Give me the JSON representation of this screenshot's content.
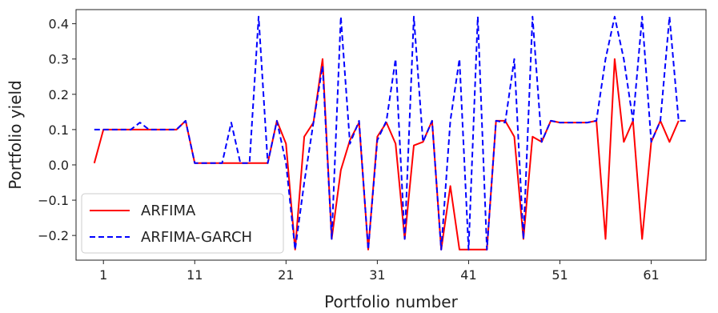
{
  "chart_data": {
    "type": "line",
    "xlabel": "Portfolio number",
    "ylabel": "Portfolio yield",
    "xlim": [
      -2,
      67
    ],
    "ylim": [
      -0.27,
      0.44
    ],
    "xticks": [
      1,
      11,
      21,
      31,
      41,
      51,
      61
    ],
    "yticks": [
      -0.2,
      -0.1,
      0.0,
      0.1,
      0.2,
      0.3,
      0.4
    ],
    "ytick_labels": [
      "−0.2",
      "−0.1",
      "0.0",
      "0.1",
      "0.2",
      "0.3",
      "0.4"
    ],
    "legend": "lower-left",
    "grid": false,
    "series": [
      {
        "name": "ARFIMA",
        "color": "#ff0000",
        "style": "solid",
        "x": [
          0,
          1,
          2,
          3,
          4,
          5,
          6,
          7,
          8,
          9,
          10,
          11,
          12,
          13,
          14,
          15,
          16,
          17,
          18,
          19,
          20,
          21,
          22,
          23,
          24,
          25,
          26,
          27,
          28,
          29,
          30,
          31,
          32,
          33,
          34,
          35,
          36,
          37,
          38,
          39,
          40,
          41,
          42,
          43,
          44,
          45,
          46,
          47,
          48,
          49,
          50,
          51,
          52,
          53,
          54,
          55,
          56,
          57,
          58,
          59,
          60,
          61,
          62,
          63,
          64
        ],
        "y": [
          0.005,
          0.1,
          0.1,
          0.1,
          0.1,
          0.1,
          0.1,
          0.1,
          0.1,
          0.1,
          0.125,
          0.005,
          0.005,
          0.005,
          0.005,
          0.005,
          0.005,
          0.005,
          0.005,
          0.005,
          0.125,
          0.06,
          -0.24,
          0.08,
          0.12,
          0.3,
          -0.21,
          -0.015,
          0.07,
          0.12,
          -0.24,
          0.08,
          0.12,
          0.06,
          -0.21,
          0.055,
          0.065,
          0.125,
          -0.24,
          -0.06,
          -0.24,
          -0.24,
          -0.24,
          -0.24,
          0.125,
          0.125,
          0.08,
          -0.21,
          0.08,
          0.065,
          0.125,
          0.12,
          0.12,
          0.12,
          0.12,
          0.125,
          -0.21,
          0.3,
          0.065,
          0.125,
          -0.21,
          0.065,
          0.125,
          0.065,
          0.125
        ]
      },
      {
        "name": "ARFIMA-GARCH",
        "color": "#0000ff",
        "style": "dashed",
        "x": [
          0,
          1,
          2,
          3,
          4,
          5,
          6,
          7,
          8,
          9,
          10,
          11,
          12,
          13,
          14,
          15,
          16,
          17,
          18,
          19,
          20,
          21,
          22,
          23,
          24,
          25,
          26,
          27,
          28,
          29,
          30,
          31,
          32,
          33,
          34,
          35,
          36,
          37,
          38,
          39,
          40,
          41,
          42,
          43,
          44,
          45,
          46,
          47,
          48,
          49,
          50,
          51,
          52,
          53,
          54,
          55,
          56,
          57,
          58,
          59,
          60,
          61,
          62,
          63,
          64,
          65
        ],
        "y": [
          0.1,
          0.1,
          0.1,
          0.1,
          0.1,
          0.12,
          0.1,
          0.1,
          0.1,
          0.1,
          0.125,
          0.005,
          0.005,
          0.005,
          0.005,
          0.12,
          0.005,
          0.005,
          0.42,
          0.005,
          0.125,
          0.005,
          -0.24,
          -0.05,
          0.12,
          0.28,
          -0.21,
          0.42,
          0.06,
          0.125,
          -0.24,
          0.07,
          0.125,
          0.3,
          -0.21,
          0.42,
          0.065,
          0.125,
          -0.24,
          0.125,
          0.3,
          -0.24,
          0.42,
          -0.24,
          0.125,
          0.12,
          0.3,
          -0.21,
          0.42,
          0.065,
          0.125,
          0.12,
          0.12,
          0.12,
          0.12,
          0.125,
          0.3,
          0.42,
          0.3,
          0.125,
          0.42,
          0.065,
          0.125,
          0.42,
          0.125,
          0.125
        ]
      }
    ]
  }
}
